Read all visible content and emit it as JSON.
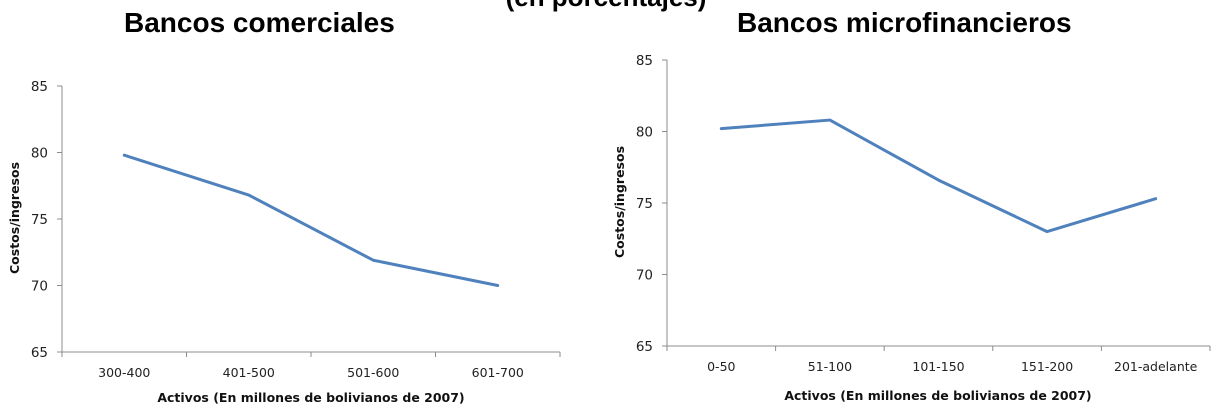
{
  "page": {
    "heading": "(en porcentajes)"
  },
  "chart_data": [
    {
      "type": "line",
      "title": "Bancos comerciales",
      "xlabel": "Activos (En millones de bolivianos de 2007)",
      "ylabel": "Costos/ingresos",
      "categories": [
        "300-400",
        "401-500",
        "501-600",
        "601-700"
      ],
      "series": [
        {
          "values": [
            79.8,
            76.8,
            71.9,
            70.0
          ]
        }
      ],
      "ylim": [
        65,
        85
      ],
      "yticks": [
        65,
        70,
        75,
        80,
        85
      ],
      "grid": false,
      "color": "#4f81bd"
    },
    {
      "type": "line",
      "title": "Bancos microfinancieros",
      "xlabel": "Activos (En millones de bolivianos de 2007)",
      "ylabel": "Costos/ingresos",
      "categories": [
        "0-50",
        "51-100",
        "101-150",
        "151-200",
        "201-adelante"
      ],
      "series": [
        {
          "values": [
            80.2,
            80.8,
            76.6,
            73.0,
            75.3
          ]
        }
      ],
      "ylim": [
        65,
        85
      ],
      "yticks": [
        65,
        70,
        75,
        80,
        85
      ],
      "grid": false,
      "color": "#4f81bd"
    }
  ]
}
